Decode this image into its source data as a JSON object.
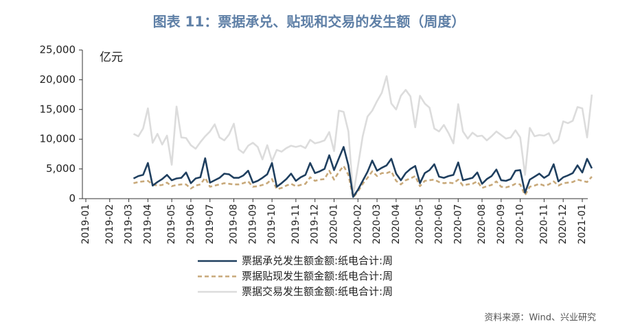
{
  "chart_data": {
    "type": "line",
    "title": "图表 11：票据承兑、贴现和交易的发生额（周度）",
    "y_unit": "亿元",
    "source": "资料来源：Wind、兴业研究",
    "categories": [
      "2019-01",
      null,
      null,
      null,
      null,
      "2019-02",
      null,
      null,
      null,
      "2019-03",
      null,
      null,
      null,
      "2019-04",
      null,
      null,
      null,
      null,
      "2019-05",
      null,
      null,
      null,
      "2019-06",
      null,
      null,
      null,
      "2019-07",
      null,
      null,
      null,
      null,
      "2019-08",
      null,
      null,
      null,
      "2019-09",
      null,
      null,
      null,
      "2019-10",
      null,
      null,
      null,
      null,
      "2019-11",
      null,
      null,
      null,
      "2019-12",
      null,
      null,
      null,
      "2020-01",
      null,
      null,
      null,
      null,
      "2020-02",
      null,
      null,
      null,
      "2020-03",
      null,
      null,
      null,
      "2020-04",
      null,
      null,
      null,
      null,
      "2020-05",
      null,
      null,
      null,
      "2020-06",
      null,
      null,
      null,
      "2020-07",
      null,
      null,
      null,
      null,
      "2020-08",
      null,
      null,
      null,
      "2020-09",
      null,
      null,
      null,
      "2020-10",
      null,
      null,
      null,
      null,
      "2020-11",
      null,
      null,
      null,
      "2020-12",
      null,
      null,
      null,
      "2021-01",
      null,
      null
    ],
    "series": [
      {
        "name": "票据承兑发生额金额:纸电合计:周",
        "color": "#1f3f5f",
        "line_style": "solid",
        "values": [
          null,
          null,
          null,
          null,
          null,
          null,
          null,
          null,
          null,
          null,
          3400,
          3800,
          4000,
          6000,
          2200,
          2800,
          3300,
          4000,
          3100,
          3400,
          3500,
          4400,
          2600,
          3400,
          3600,
          6800,
          2700,
          3100,
          3500,
          4200,
          4100,
          3500,
          3500,
          3900,
          4700,
          2700,
          3000,
          3500,
          4100,
          6000,
          2000,
          2600,
          3300,
          4200,
          3000,
          3600,
          4000,
          6000,
          4300,
          4600,
          5000,
          7300,
          4800,
          6800,
          8700,
          5600,
          300,
          1500,
          3000,
          4500,
          6400,
          4700,
          5200,
          5600,
          6700,
          4200,
          3100,
          4300,
          5000,
          5500,
          2600,
          4300,
          4800,
          5800,
          3700,
          3500,
          3800,
          4000,
          6100,
          3100,
          3300,
          3500,
          4400,
          2500,
          3300,
          3800,
          4900,
          3100,
          3000,
          3300,
          4700,
          4800,
          1000,
          3200,
          3700,
          4200,
          3500,
          4000,
          5800,
          2900,
          3600,
          3900,
          4300,
          5600,
          4400,
          6700,
          5100
        ]
      },
      {
        "name": "票据贴现发生额金额:纸电合计:周",
        "color": "#c8a97a",
        "line_style": "dashed",
        "values": [
          null,
          null,
          null,
          null,
          null,
          null,
          null,
          null,
          null,
          null,
          2600,
          2800,
          2900,
          3000,
          2400,
          2200,
          2300,
          2700,
          2100,
          2300,
          2400,
          2400,
          1700,
          2200,
          2400,
          3500,
          2000,
          2200,
          2400,
          2600,
          2500,
          2400,
          2400,
          2600,
          2900,
          2000,
          2100,
          2300,
          2600,
          3300,
          1600,
          1800,
          2200,
          2500,
          2100,
          2300,
          2500,
          3600,
          3000,
          3200,
          3300,
          4700,
          3200,
          4500,
          5500,
          4000,
          200,
          1200,
          2500,
          3500,
          4600,
          3800,
          4300,
          4300,
          4600,
          3000,
          2400,
          3100,
          3400,
          3800,
          2100,
          3000,
          3100,
          3200,
          2800,
          2600,
          2700,
          2600,
          3200,
          2200,
          2400,
          2500,
          2900,
          1800,
          2100,
          2300,
          2900,
          2000,
          1900,
          2100,
          2500,
          2400,
          600,
          2000,
          2200,
          2500,
          2200,
          2400,
          2900,
          2200,
          2600,
          2700,
          2800,
          3200,
          3000,
          2800,
          3700
        ]
      },
      {
        "name": "票据交易发生额金额:纸电合计:周",
        "color": "#dcdcdc",
        "line_style": "solid",
        "values": [
          null,
          null,
          null,
          null,
          null,
          null,
          null,
          null,
          null,
          null,
          10900,
          10500,
          11800,
          15200,
          9400,
          10900,
          9100,
          10600,
          5700,
          15500,
          10300,
          10200,
          9000,
          8400,
          9500,
          10500,
          11300,
          12500,
          10300,
          9800,
          10800,
          12600,
          8300,
          7700,
          8900,
          9400,
          8700,
          6600,
          9000,
          6300,
          8200,
          7900,
          8500,
          8900,
          8700,
          8900,
          8500,
          9900,
          9300,
          9500,
          9800,
          11200,
          8000,
          14800,
          14600,
          11300,
          500,
          5500,
          10500,
          13800,
          14800,
          16400,
          17800,
          20600,
          16000,
          15000,
          17300,
          18300,
          17200,
          12000,
          17300,
          16000,
          15300,
          11800,
          11300,
          12400,
          11000,
          9300,
          15900,
          11300,
          10100,
          11100,
          10500,
          10600,
          9800,
          10500,
          11300,
          10700,
          10100,
          10300,
          11500,
          10300,
          4000,
          11900,
          10500,
          10700,
          10600,
          11000,
          9300,
          9900,
          13000,
          12700,
          13100,
          15400,
          15200,
          10300,
          17500
        ]
      }
    ],
    "ylim": [
      0,
      25000
    ],
    "yticks": [
      0,
      {
        "value": 5000,
        "label": "5,000"
      },
      {
        "value": 10000,
        "label": "10,000"
      },
      {
        "value": 15000,
        "label": "15,000"
      },
      {
        "value": 20000,
        "label": "20,000"
      },
      {
        "value": 25000,
        "label": "25,000"
      }
    ],
    "grid": false
  }
}
